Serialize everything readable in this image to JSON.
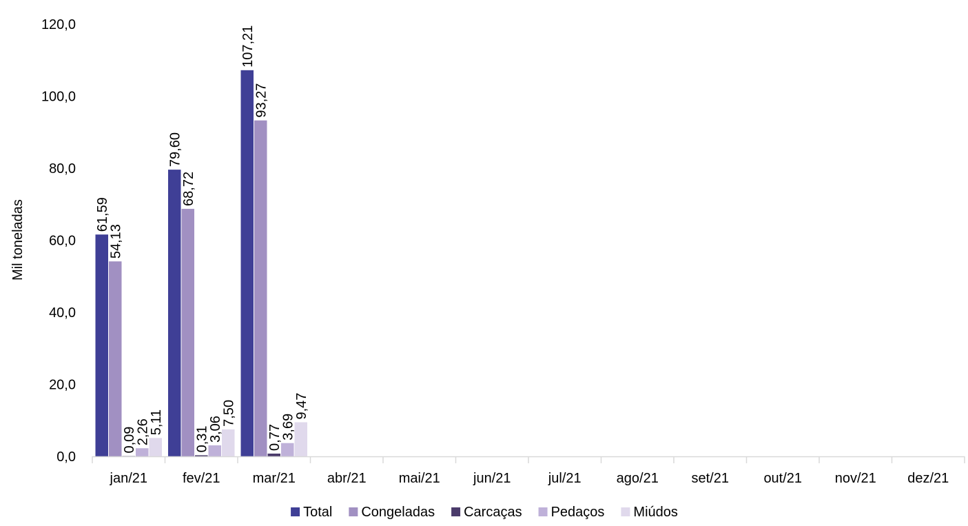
{
  "chart_data": {
    "type": "bar",
    "title": "",
    "xlabel": "",
    "ylabel": "Mil toneladas",
    "ylim": [
      0,
      120
    ],
    "y_ticks": [
      "0,0",
      "20,0",
      "40,0",
      "60,0",
      "80,0",
      "100,0",
      "120,0"
    ],
    "categories": [
      "jan/21",
      "fev/21",
      "mar/21",
      "abr/21",
      "mai/21",
      "jun/21",
      "jul/21",
      "ago/21",
      "set/21",
      "out/21",
      "nov/21",
      "dez/21"
    ],
    "series": [
      {
        "name": "Total",
        "color": "#3f3f96",
        "values": [
          61.59,
          79.6,
          107.21,
          null,
          null,
          null,
          null,
          null,
          null,
          null,
          null,
          null
        ],
        "labels": [
          "61,59",
          "79,60",
          "107,21"
        ]
      },
      {
        "name": "Congeladas",
        "color": "#a190c2",
        "values": [
          54.13,
          68.72,
          93.27,
          null,
          null,
          null,
          null,
          null,
          null,
          null,
          null,
          null
        ],
        "labels": [
          "54,13",
          "68,72",
          "93,27"
        ]
      },
      {
        "name": "Carcaças",
        "color": "#4b3b6b",
        "values": [
          0.09,
          0.31,
          0.77,
          null,
          null,
          null,
          null,
          null,
          null,
          null,
          null,
          null
        ],
        "labels": [
          "0,09",
          "0,31",
          "0,77"
        ]
      },
      {
        "name": "Pedaços",
        "color": "#bfb1d9",
        "values": [
          2.26,
          3.06,
          3.69,
          null,
          null,
          null,
          null,
          null,
          null,
          null,
          null,
          null
        ],
        "labels": [
          "2,26",
          "3,06",
          "3,69"
        ]
      },
      {
        "name": "Miúdos",
        "color": "#e0d9ec",
        "values": [
          5.11,
          7.5,
          9.47,
          null,
          null,
          null,
          null,
          null,
          null,
          null,
          null,
          null
        ],
        "labels": [
          "5,11",
          "7,50",
          "9,47"
        ]
      }
    ],
    "grid": false,
    "legend_position": "bottom"
  }
}
